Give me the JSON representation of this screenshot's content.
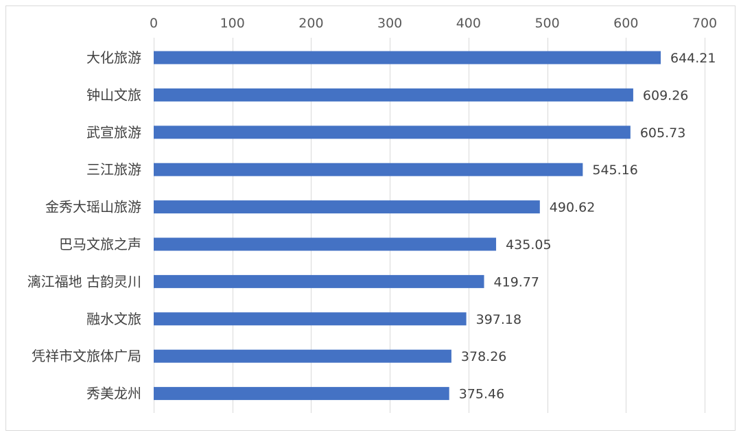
{
  "chart_data": {
    "type": "bar",
    "orientation": "horizontal",
    "categories": [
      "大化旅游",
      "钟山文旅",
      "武宣旅游",
      "三江旅游",
      "金秀大瑶山旅游",
      "巴马文旅之声",
      "漓江福地 古韵灵川",
      "融水文旅",
      "凭祥市文旅体广局",
      "秀美龙州"
    ],
    "values": [
      644.21,
      609.26,
      605.73,
      545.16,
      490.62,
      435.05,
      419.77,
      397.18,
      378.26,
      375.46
    ],
    "value_labels": [
      "644.21",
      "609.26",
      "605.73",
      "545.16",
      "490.62",
      "435.05",
      "419.77",
      "397.18",
      "378.26",
      "375.46"
    ],
    "xlim": [
      0,
      700
    ],
    "xticks": [
      0,
      100,
      200,
      300,
      400,
      500,
      600,
      700
    ],
    "xtick_labels": [
      "0",
      "100",
      "200",
      "300",
      "400",
      "500",
      "600",
      "700"
    ],
    "x_axis_position": "top",
    "grid": true,
    "legend": false,
    "colors": {
      "bar": "#4472C4",
      "grid": "#d9d9d9",
      "frame": "#d9d9d9"
    }
  }
}
